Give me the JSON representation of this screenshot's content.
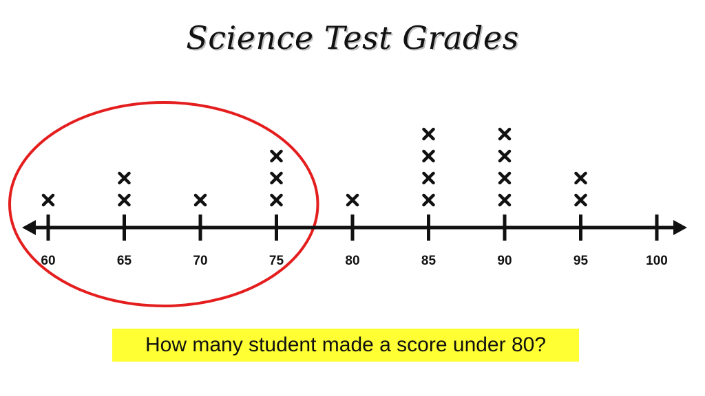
{
  "title": "Science Test Grades",
  "question": "How many student made a score under 80?",
  "colors": {
    "axis": "#111111",
    "mark": "#111111",
    "circle": "#e41e1e",
    "highlight": "#ffff33"
  },
  "chart_data": {
    "type": "dot-plot",
    "title": "Science Test Grades",
    "ticks": [
      60,
      65,
      70,
      75,
      80,
      85,
      90,
      95,
      100
    ],
    "tick_labels": [
      "60",
      "65",
      "70",
      "75",
      "80",
      "85",
      "90",
      "95",
      "100"
    ],
    "xlim": [
      60,
      100
    ],
    "marker": "x",
    "points": [
      {
        "x": 60,
        "count": 1
      },
      {
        "x": 65,
        "count": 2
      },
      {
        "x": 70,
        "count": 1
      },
      {
        "x": 75,
        "count": 3
      },
      {
        "x": 80,
        "count": 1
      },
      {
        "x": 85,
        "count": 4
      },
      {
        "x": 90,
        "count": 4
      },
      {
        "x": 95,
        "count": 2
      }
    ],
    "highlight": {
      "shape": "ellipse",
      "color": "#e41e1e",
      "covers": [
        60,
        75
      ]
    },
    "grid": false
  }
}
